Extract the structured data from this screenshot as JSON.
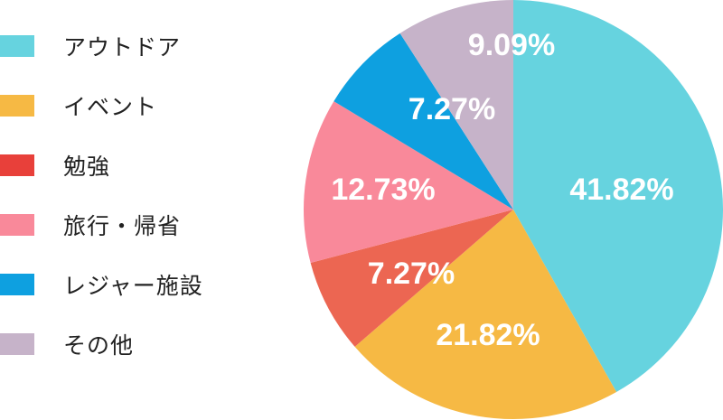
{
  "legend": {
    "items": [
      {
        "label": "アウトドア",
        "color": "#66d3df"
      },
      {
        "label": "イベント",
        "color": "#f6b944"
      },
      {
        "label": "勉強",
        "color": "#e8403a"
      },
      {
        "label": "旅行・帰省",
        "color": "#f9899a"
      },
      {
        "label": "レジャー施設",
        "color": "#0ea0e0"
      },
      {
        "label": "その他",
        "color": "#c6b3c9"
      }
    ]
  },
  "chart_data": {
    "type": "pie",
    "categories": [
      "アウトドア",
      "イベント",
      "勉強",
      "旅行・帰省",
      "レジャー施設",
      "その他"
    ],
    "values": [
      41.82,
      21.82,
      7.27,
      12.73,
      7.27,
      9.09
    ],
    "labels": [
      "41.82%",
      "21.82%",
      "7.27%",
      "12.73%",
      "7.27%",
      "9.09%"
    ],
    "colors": [
      "#66d3df",
      "#f6b944",
      "#ec6652",
      "#f9899a",
      "#0ea0e0",
      "#c6b3c9"
    ],
    "start": "12 o'clock",
    "direction": "clockwise",
    "legend_position": "left"
  }
}
